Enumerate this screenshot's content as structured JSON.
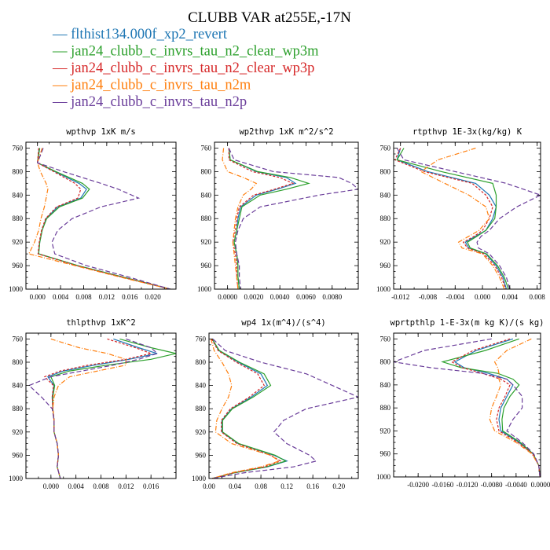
{
  "figure_title": "CLUBB VAR at255E,-17N",
  "series": [
    {
      "name": "flthist134.000f_xp2_revert",
      "color": "#1f77b4",
      "dash": ""
    },
    {
      "name": "jan24_clubb_c_invrs_tau_n2_clear_wp3m",
      "color": "#2ca02c",
      "dash": ""
    },
    {
      "name": "jan24_clubb_c_invrs_tau_n2_clear_wp3p",
      "color": "#d62728",
      "dash": "3,2"
    },
    {
      "name": "jan24_clubb_c_invrs_tau_n2m",
      "color": "#ff7f0e",
      "dash": "6,2,1,2"
    },
    {
      "name": "jan24_clubb_c_invrs_tau_n2p",
      "color": "#6a3d9a",
      "dash": "6,3"
    }
  ],
  "legend_dash": "—",
  "chart_data": [
    {
      "type": "line",
      "title": "wpthvp  1xK m/s",
      "xlim": [
        -0.002,
        0.024
      ],
      "ylim": [
        1000,
        750
      ],
      "xticks": [
        0.0,
        0.004,
        0.008,
        0.012,
        0.016,
        0.02
      ],
      "xtick_labels": [
        "0.000",
        "0.004",
        "0.008",
        "0.012",
        "0.016",
        "0.020"
      ],
      "yticks": [
        760,
        800,
        840,
        880,
        920,
        960,
        1000
      ],
      "y": [
        760,
        785,
        800,
        820,
        830,
        845,
        860,
        880,
        900,
        920,
        940,
        960,
        980,
        1000
      ],
      "series": [
        {
          "x": [
            0.0003,
            0.0,
            0.003,
            0.0072,
            0.0085,
            0.0075,
            0.0035,
            0.0015,
            0.0008,
            0.0004,
            0.0002,
            0.007,
            0.015,
            0.023
          ]
        },
        {
          "x": [
            0.0004,
            0.0,
            0.0032,
            0.0078,
            0.009,
            0.0078,
            0.0038,
            0.0016,
            0.0008,
            0.0004,
            0.0002,
            0.007,
            0.015,
            0.023
          ]
        },
        {
          "x": [
            0.0002,
            0.0,
            0.0028,
            0.0065,
            0.0075,
            0.007,
            0.0033,
            0.0014,
            0.0007,
            0.0003,
            0.0001,
            0.0068,
            0.0148,
            0.023
          ]
        },
        {
          "x": [
            0.0008,
            0.0,
            0.0005,
            0.0015,
            0.0018,
            0.0015,
            0.0012,
            0.0006,
            0.0002,
            -0.0005,
            -0.0015,
            0.0065,
            0.0145,
            0.023
          ]
        },
        {
          "x": [
            0.001,
            0.0,
            0.0045,
            0.011,
            0.014,
            0.0175,
            0.011,
            0.006,
            0.0035,
            0.0025,
            0.003,
            0.0085,
            0.016,
            0.023
          ]
        }
      ]
    },
    {
      "type": "line",
      "title": "wp2thvp  1xK m^2/s^2",
      "xlim": [
        -0.001,
        0.01
      ],
      "ylim": [
        1000,
        750
      ],
      "xticks": [
        0.0,
        0.002,
        0.004,
        0.006,
        0.008
      ],
      "xtick_labels": [
        "0.0000",
        "0.0020",
        "0.0040",
        "0.0060",
        "0.0080"
      ],
      "yticks": [
        760,
        800,
        840,
        880,
        920,
        960,
        1000
      ],
      "y": [
        760,
        780,
        800,
        810,
        820,
        830,
        840,
        860,
        880,
        900,
        920,
        940,
        960,
        980,
        1000
      ],
      "series": [
        {
          "x": [
            0.0001,
            0.0002,
            0.0022,
            0.0045,
            0.0052,
            0.0038,
            0.0022,
            0.001,
            0.0008,
            0.0007,
            0.0005,
            0.0007,
            0.0008,
            0.0008,
            0.0009
          ]
        },
        {
          "x": [
            0.0001,
            0.0002,
            0.0023,
            0.0048,
            0.0062,
            0.0045,
            0.0025,
            0.0011,
            0.0009,
            0.0007,
            0.0005,
            0.0007,
            0.0008,
            0.0008,
            0.0009
          ]
        },
        {
          "x": [
            0.0001,
            0.0001,
            0.0019,
            0.004,
            0.005,
            0.0036,
            0.002,
            0.0009,
            0.0007,
            0.0006,
            0.0004,
            0.0006,
            0.0007,
            0.0007,
            0.0008
          ]
        },
        {
          "x": [
            -0.0003,
            -0.0004,
            0.0,
            0.0012,
            0.0022,
            0.0018,
            0.0012,
            0.0008,
            0.0006,
            0.0005,
            0.0004,
            0.0005,
            0.0006,
            0.0007,
            0.0008
          ]
        },
        {
          "x": [
            0.0001,
            0.0005,
            0.0035,
            0.0085,
            0.0095,
            0.01,
            0.007,
            0.0025,
            0.0012,
            0.0008,
            0.0006,
            0.0007,
            0.0009,
            0.0009,
            0.001
          ]
        }
      ]
    },
    {
      "type": "line",
      "title": "rtpthvp  1E-3x(kg/kg) K",
      "xlim": [
        -0.013,
        0.0085
      ],
      "ylim": [
        1000,
        750
      ],
      "xticks": [
        -0.012,
        -0.008,
        -0.004,
        0.0,
        0.004,
        0.008
      ],
      "xtick_labels": [
        "-0.012",
        "-0.008",
        "-0.004",
        "0.000",
        "0.004",
        "0.008"
      ],
      "yticks": [
        760,
        800,
        840,
        880,
        920,
        960,
        1000
      ],
      "y": [
        760,
        780,
        800,
        820,
        840,
        860,
        880,
        900,
        910,
        920,
        930,
        940,
        960,
        980,
        1000
      ],
      "series": [
        {
          "x": [
            -0.012,
            -0.0125,
            -0.008,
            -0.001,
            0.001,
            0.002,
            0.0015,
            0.0005,
            -0.001,
            -0.0025,
            -0.002,
            0.0005,
            0.002,
            0.003,
            0.0035
          ]
        },
        {
          "x": [
            -0.0115,
            -0.0125,
            -0.006,
            0.0015,
            0.002,
            0.002,
            0.0018,
            0.0005,
            -0.0008,
            -0.0022,
            -0.0018,
            0.0006,
            0.0022,
            0.0032,
            0.0038
          ]
        },
        {
          "x": [
            -0.012,
            -0.0128,
            -0.0085,
            -0.0015,
            0.0005,
            0.0015,
            0.001,
            0.0,
            -0.0012,
            -0.0028,
            -0.0022,
            0.0002,
            0.0018,
            0.0028,
            0.0034
          ]
        },
        {
          "x": [
            -0.001,
            -0.0065,
            -0.009,
            -0.0055,
            -0.002,
            0.0005,
            0.001,
            -0.0005,
            -0.002,
            -0.0035,
            -0.003,
            0.0,
            0.0015,
            0.0025,
            0.0032
          ]
        },
        {
          "x": [
            -0.0125,
            -0.0115,
            -0.004,
            0.0035,
            0.0085,
            0.005,
            0.0025,
            0.001,
            -0.0002,
            -0.0008,
            -0.0006,
            0.001,
            0.0025,
            0.0035,
            0.004
          ]
        }
      ]
    },
    {
      "type": "line",
      "title": "thlpthvp  1xK^2",
      "xlim": [
        -0.004,
        0.02
      ],
      "ylim": [
        1000,
        750
      ],
      "xticks": [
        0.0,
        0.004,
        0.008,
        0.012,
        0.016
      ],
      "xtick_labels": [
        "0.000",
        "0.004",
        "0.008",
        "0.012",
        "0.016"
      ],
      "yticks": [
        760,
        800,
        840,
        880,
        920,
        960,
        1000
      ],
      "y": [
        760,
        775,
        785,
        795,
        805,
        815,
        825,
        840,
        860,
        880,
        900,
        920,
        940,
        960,
        980,
        1000
      ],
      "series": [
        {
          "x": [
            0.01,
            0.014,
            0.017,
            0.0125,
            0.007,
            0.002,
            -0.0005,
            0.0005,
            0.0002,
            0.0003,
            0.0005,
            0.0005,
            0.001,
            0.0012,
            0.001,
            0.0015
          ]
        },
        {
          "x": [
            0.011,
            0.016,
            0.02,
            0.016,
            0.009,
            0.003,
            0.0,
            0.0006,
            0.0003,
            0.0003,
            0.0005,
            0.0005,
            0.001,
            0.0012,
            0.001,
            0.0015
          ]
        },
        {
          "x": [
            0.009,
            0.0135,
            0.016,
            0.012,
            0.006,
            0.0015,
            -0.001,
            0.0004,
            0.0002,
            0.0003,
            0.0005,
            0.0005,
            0.001,
            0.0012,
            0.001,
            0.0015
          ]
        },
        {
          "x": [
            0.0,
            0.0045,
            0.009,
            0.012,
            0.012,
            0.0075,
            0.003,
            0.0012,
            0.0005,
            0.0003,
            0.0005,
            0.0005,
            0.001,
            0.0012,
            0.001,
            0.0015
          ]
        },
        {
          "x": [
            0.012,
            0.016,
            0.017,
            0.014,
            0.01,
            0.005,
            0.0,
            -0.0035,
            -0.0015,
            0.0002,
            0.0005,
            0.0005,
            0.001,
            0.0012,
            0.001,
            0.0015
          ]
        }
      ]
    },
    {
      "type": "line",
      "title": "wp4  1x(m^4)/(s^4)",
      "xlim": [
        0.0,
        0.23
      ],
      "ylim": [
        1000,
        750
      ],
      "xticks": [
        0.0,
        0.04,
        0.08,
        0.12,
        0.16,
        0.2
      ],
      "xtick_labels": [
        "0.00",
        "0.04",
        "0.08",
        "0.12",
        "0.16",
        "0.20"
      ],
      "yticks": [
        760,
        800,
        840,
        880,
        920,
        960,
        1000
      ],
      "y": [
        760,
        780,
        800,
        820,
        840,
        860,
        880,
        900,
        920,
        940,
        960,
        970,
        980,
        990,
        1000
      ],
      "series": [
        {
          "x": [
            0.005,
            0.015,
            0.045,
            0.08,
            0.09,
            0.065,
            0.035,
            0.02,
            0.02,
            0.045,
            0.1,
            0.12,
            0.09,
            0.04,
            0.005
          ]
        },
        {
          "x": [
            0.005,
            0.016,
            0.047,
            0.085,
            0.095,
            0.068,
            0.036,
            0.021,
            0.021,
            0.046,
            0.102,
            0.118,
            0.088,
            0.04,
            0.005
          ]
        },
        {
          "x": [
            0.004,
            0.014,
            0.042,
            0.075,
            0.085,
            0.062,
            0.033,
            0.019,
            0.019,
            0.043,
            0.095,
            0.11,
            0.085,
            0.038,
            0.005
          ]
        },
        {
          "x": [
            0.003,
            0.008,
            0.02,
            0.03,
            0.035,
            0.03,
            0.02,
            0.012,
            0.01,
            0.035,
            0.095,
            0.108,
            0.08,
            0.035,
            0.005
          ]
        },
        {
          "x": [
            0.006,
            0.025,
            0.08,
            0.15,
            0.19,
            0.23,
            0.15,
            0.115,
            0.1,
            0.12,
            0.155,
            0.165,
            0.13,
            0.055,
            0.005
          ]
        }
      ]
    },
    {
      "type": "line",
      "title": "wprtpthlp  1-E-3x(m kg K)/(s kg)",
      "xlim": [
        -0.024,
        0.0
      ],
      "ylim": [
        1000,
        750
      ],
      "xticks": [
        -0.02,
        -0.016,
        -0.012,
        -0.008,
        -0.004,
        0.0
      ],
      "xtick_labels": [
        "-0.0200",
        "-0.0160",
        "-0.0120",
        "-0.0080",
        "-0.0040",
        "0.0000"
      ],
      "yticks": [
        760,
        800,
        840,
        880,
        920,
        960,
        1000
      ],
      "y": [
        760,
        780,
        800,
        810,
        820,
        830,
        840,
        860,
        880,
        900,
        920,
        940,
        960,
        980,
        1000
      ],
      "series": [
        {
          "x": [
            -0.0045,
            -0.0105,
            -0.014,
            -0.0125,
            -0.0085,
            -0.0055,
            -0.0045,
            -0.0055,
            -0.0065,
            -0.0068,
            -0.0065,
            -0.0035,
            -0.0012,
            -0.0003,
            -0.0001
          ]
        },
        {
          "x": [
            -0.0035,
            -0.009,
            -0.016,
            -0.013,
            -0.007,
            -0.0045,
            -0.0035,
            -0.005,
            -0.006,
            -0.0063,
            -0.0062,
            -0.0033,
            -0.0012,
            -0.0003,
            -0.0001
          ]
        },
        {
          "x": [
            -0.005,
            -0.011,
            -0.0145,
            -0.0128,
            -0.0095,
            -0.0065,
            -0.005,
            -0.0058,
            -0.0068,
            -0.0072,
            -0.0068,
            -0.0037,
            -0.0013,
            -0.0003,
            -0.0001
          ]
        },
        {
          "x": [
            -0.0015,
            -0.0055,
            -0.0075,
            -0.007,
            -0.0068,
            -0.0068,
            -0.0065,
            -0.0072,
            -0.008,
            -0.0083,
            -0.0075,
            -0.004,
            -0.0014,
            -0.0003,
            -0.0001
          ]
        },
        {
          "x": [
            -0.008,
            -0.019,
            -0.024,
            -0.018,
            -0.0095,
            -0.0055,
            -0.0045,
            -0.003,
            -0.003,
            -0.0045,
            -0.0055,
            -0.003,
            -0.0011,
            -0.0003,
            -0.0001
          ]
        }
      ]
    }
  ]
}
